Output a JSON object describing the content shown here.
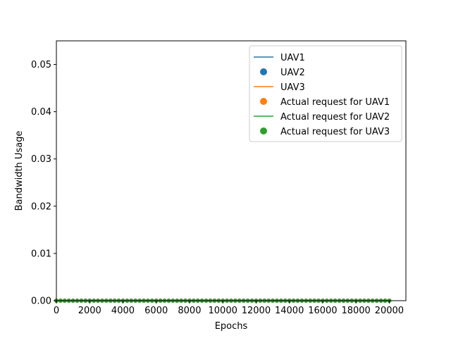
{
  "chart_data": {
    "type": "line",
    "title": "",
    "xlabel": "Epochs",
    "ylabel": "Bandwidth Usage",
    "xlim": [
      0,
      21000
    ],
    "ylim": [
      0,
      0.055
    ],
    "xticks": [
      0,
      2000,
      4000,
      6000,
      8000,
      10000,
      12000,
      14000,
      16000,
      18000,
      20000
    ],
    "xtick_labels": [
      "0",
      "2000",
      "4000",
      "6000",
      "8000",
      "10000",
      "12000",
      "14000",
      "16000",
      "18000",
      "20000"
    ],
    "yticks": [
      0.0,
      0.01,
      0.02,
      0.03,
      0.04,
      0.05
    ],
    "ytick_labels": [
      "0.00",
      "0.01",
      "0.02",
      "0.03",
      "0.04",
      "0.05"
    ],
    "grid": false,
    "legend_position": "top-right",
    "series": [
      {
        "name": "UAV1",
        "kind": "line",
        "color": "#1f77b4",
        "x": [
          0,
          20000
        ],
        "y": [
          0,
          0
        ]
      },
      {
        "name": "UAV2",
        "kind": "scatter",
        "color": "#1f77b4",
        "x_start": 0,
        "x_end": 20000,
        "x_step": 250,
        "y": 0
      },
      {
        "name": "UAV3",
        "kind": "line",
        "color": "#ff7f0e",
        "x": [
          0,
          20000
        ],
        "y": [
          0,
          0
        ]
      },
      {
        "name": "Actual request for UAV1",
        "kind": "scatter",
        "color": "#ff7f0e",
        "x_start": 0,
        "x_end": 20000,
        "x_step": 250,
        "y": 0
      },
      {
        "name": "Actual request for UAV2",
        "kind": "line",
        "color": "#2ca02c",
        "x": [
          0,
          20000
        ],
        "y": [
          0,
          0
        ]
      },
      {
        "name": "Actual request for UAV3",
        "kind": "scatter",
        "color": "#2ca02c",
        "x_start": 0,
        "x_end": 20000,
        "x_step": 250,
        "y": 0
      }
    ]
  }
}
